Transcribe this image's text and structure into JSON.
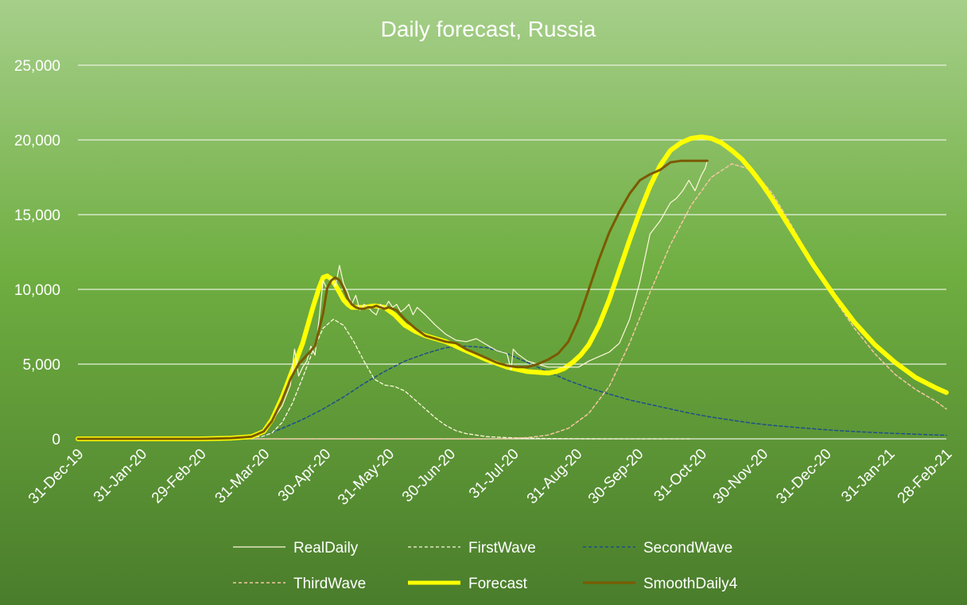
{
  "chart_data": {
    "type": "line",
    "title": "Daily forecast, Russia",
    "xlabel": "",
    "ylabel": "",
    "x_tick_labels": [
      "31-Dec-19",
      "31-Jan-20",
      "29-Feb-20",
      "31-Mar-20",
      "30-Apr-20",
      "31-May-20",
      "30-Jun-20",
      "31-Jul-20",
      "31-Aug-20",
      "30-Sep-20",
      "31-Oct-20",
      "30-Nov-20",
      "31-Dec-20",
      "31-Jan-21",
      "28-Feb-21"
    ],
    "x_tick_days": [
      0,
      31,
      60,
      91,
      121,
      152,
      182,
      213,
      244,
      274,
      305,
      335,
      366,
      397,
      425
    ],
    "x_range_days": [
      0,
      425
    ],
    "y_ticks": [
      0,
      5000,
      10000,
      15000,
      20000,
      25000
    ],
    "y_tick_labels": [
      "0",
      "5,000",
      "10,000",
      "15,000",
      "20,000",
      "25,000"
    ],
    "ylim": [
      0,
      25000
    ],
    "grid": true,
    "legend_position": "bottom",
    "colors": {
      "RealDaily": "#fff8dc",
      "FirstWave": "#fff8dc",
      "SecondWave": "#1f4e8c",
      "ThirdWave": "#f4c7a1",
      "Forecast": "#ffff00",
      "SmoothDaily4": "#7b5a00"
    },
    "series": [
      {
        "name": "RealDaily",
        "style": "solid-thin",
        "x": [
          0,
          60,
          75,
          85,
          91,
          95,
          100,
          104,
          106,
          108,
          110,
          112,
          114,
          116,
          118,
          120,
          122,
          124,
          126,
          128,
          130,
          132,
          134,
          136,
          138,
          140,
          142,
          144,
          146,
          148,
          150,
          152,
          154,
          156,
          158,
          160,
          162,
          164,
          166,
          170,
          175,
          180,
          185,
          190,
          195,
          200,
          205,
          210,
          212,
          213,
          215,
          220,
          225,
          230,
          235,
          240,
          245,
          250,
          255,
          260,
          265,
          270,
          275,
          280,
          285,
          290,
          293,
          296,
          299,
          302,
          305,
          307,
          308
        ],
        "y": [
          0,
          0,
          50,
          150,
          500,
          1200,
          2200,
          3600,
          6000,
          4200,
          4800,
          5200,
          6200,
          5600,
          8000,
          10600,
          10000,
          10800,
          10200,
          11600,
          10400,
          9800,
          9000,
          9600,
          8600,
          9000,
          8800,
          8500,
          8300,
          9000,
          8700,
          9200,
          8800,
          9000,
          8500,
          8700,
          9000,
          8300,
          8800,
          8300,
          7600,
          7000,
          6600,
          6500,
          6700,
          6300,
          5900,
          5700,
          4600,
          6000,
          5700,
          5200,
          5000,
          4800,
          4800,
          4800,
          4800,
          5200,
          5500,
          5800,
          6400,
          8000,
          10500,
          13700,
          14600,
          15800,
          16100,
          16600,
          17300,
          16600,
          17600,
          18100,
          18600
        ]
      },
      {
        "name": "FirstWave",
        "style": "dashed",
        "x": [
          0,
          70,
          80,
          90,
          95,
          100,
          105,
          110,
          115,
          120,
          125,
          130,
          135,
          140,
          145,
          150,
          155,
          160,
          165,
          170,
          175,
          180,
          185,
          190,
          195,
          200,
          210,
          220,
          230,
          245,
          260,
          300,
          360,
          425
        ],
        "y": [
          0,
          0,
          30,
          150,
          400,
          1100,
          2400,
          4100,
          5900,
          7400,
          8000,
          7600,
          6500,
          5200,
          4000,
          3600,
          3500,
          3200,
          2600,
          2000,
          1400,
          900,
          550,
          350,
          250,
          150,
          80,
          40,
          20,
          5,
          0,
          0,
          0,
          0
        ],
        "end_x": 300
      },
      {
        "name": "SecondWave",
        "style": "dashed",
        "x": [
          0,
          80,
          90,
          100,
          110,
          120,
          130,
          140,
          150,
          160,
          170,
          180,
          190,
          200,
          210,
          220,
          230,
          240,
          250,
          260,
          270,
          280,
          290,
          300,
          310,
          320,
          330,
          340,
          350,
          360,
          370,
          380,
          390,
          400,
          410,
          420,
          425
        ],
        "y": [
          0,
          0,
          150,
          700,
          1300,
          2000,
          2800,
          3700,
          4500,
          5200,
          5700,
          6100,
          6200,
          6100,
          5700,
          5100,
          4500,
          3900,
          3400,
          3000,
          2600,
          2300,
          2000,
          1700,
          1450,
          1250,
          1050,
          900,
          780,
          670,
          570,
          490,
          420,
          360,
          310,
          260,
          240
        ]
      },
      {
        "name": "ThirdWave",
        "style": "dashed",
        "x": [
          0,
          200,
          210,
          220,
          230,
          240,
          250,
          260,
          270,
          280,
          290,
          300,
          310,
          320,
          330,
          340,
          350,
          360,
          370,
          380,
          390,
          400,
          410,
          420,
          425
        ],
        "y": [
          0,
          0,
          20,
          80,
          250,
          700,
          1700,
          3500,
          6400,
          9800,
          13000,
          15600,
          17500,
          18400,
          18000,
          16400,
          14100,
          11700,
          9400,
          7400,
          5700,
          4300,
          3300,
          2500,
          2000
        ]
      },
      {
        "name": "Forecast",
        "style": "solid-thick",
        "x": [
          0,
          60,
          75,
          85,
          91,
          95,
          100,
          105,
          110,
          115,
          118,
          120,
          122,
          124,
          126,
          128,
          130,
          132,
          134,
          136,
          140,
          145,
          150,
          155,
          160,
          165,
          170,
          180,
          190,
          200,
          210,
          220,
          230,
          234,
          238,
          242,
          246,
          250,
          255,
          260,
          265,
          270,
          275,
          280,
          285,
          290,
          295,
          300,
          305,
          310,
          315,
          320,
          325,
          330,
          335,
          340,
          345,
          350,
          355,
          360,
          370,
          380,
          390,
          400,
          410,
          420,
          425
        ],
        "y": [
          0,
          0,
          50,
          150,
          500,
          1300,
          2800,
          4600,
          6400,
          8800,
          10100,
          10800,
          10900,
          10700,
          10300,
          9800,
          9300,
          9000,
          8800,
          8800,
          8800,
          8900,
          8800,
          8300,
          7600,
          7200,
          6900,
          6500,
          5900,
          5300,
          4800,
          4500,
          4400,
          4500,
          4700,
          5100,
          5600,
          6300,
          7600,
          9300,
          11300,
          13300,
          15200,
          16900,
          18300,
          19300,
          19800,
          20100,
          20200,
          20100,
          19800,
          19300,
          18700,
          17900,
          17000,
          16000,
          14900,
          13800,
          12700,
          11600,
          9600,
          7800,
          6300,
          5100,
          4100,
          3400,
          3100
        ]
      },
      {
        "name": "SmoothDaily4",
        "style": "solid-medium",
        "x": [
          0,
          60,
          75,
          85,
          91,
          95,
          100,
          104,
          108,
          112,
          116,
          120,
          122,
          124,
          126,
          128,
          130,
          132,
          134,
          136,
          138,
          140,
          142,
          144,
          146,
          148,
          150,
          152,
          154,
          156,
          158,
          160,
          165,
          170,
          175,
          180,
          185,
          190,
          195,
          200,
          205,
          210,
          215,
          220,
          225,
          230,
          235,
          240,
          245,
          250,
          255,
          260,
          265,
          270,
          275,
          280,
          285,
          290,
          295,
          300,
          305,
          307,
          308
        ],
        "y": [
          0,
          0,
          50,
          150,
          500,
          1200,
          2600,
          4000,
          5000,
          5600,
          6200,
          8400,
          10100,
          10600,
          10800,
          10600,
          10100,
          9400,
          9000,
          8800,
          8700,
          8700,
          8800,
          8800,
          8900,
          8800,
          8700,
          8800,
          8700,
          8600,
          8300,
          8000,
          7400,
          6900,
          6700,
          6500,
          6400,
          6000,
          5700,
          5400,
          5100,
          4900,
          4800,
          4800,
          5000,
          5300,
          5700,
          6500,
          8000,
          10000,
          12000,
          13800,
          15200,
          16400,
          17300,
          17700,
          18000,
          18500,
          18600,
          18600,
          18600,
          18600,
          18600
        ]
      }
    ]
  }
}
